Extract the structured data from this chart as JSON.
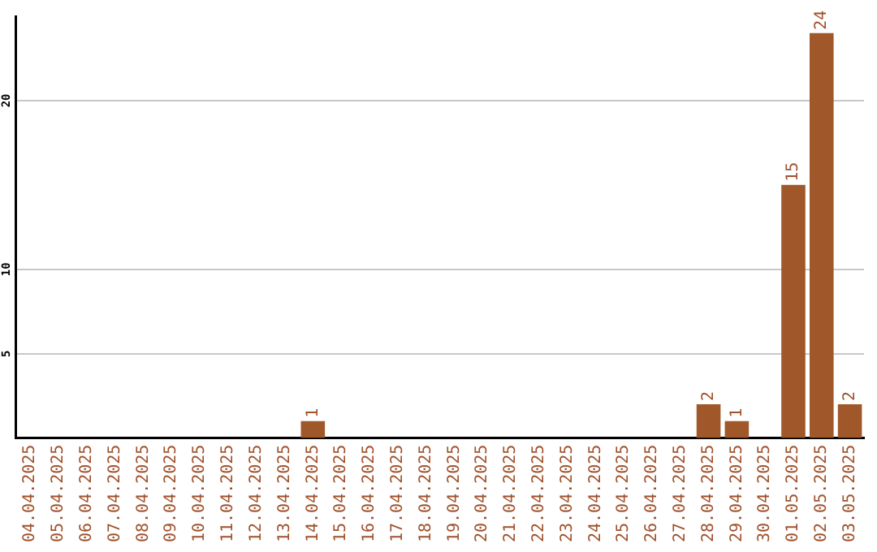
{
  "chart_data": {
    "type": "bar",
    "categories": [
      "04.04.2025",
      "05.04.2025",
      "06.04.2025",
      "07.04.2025",
      "08.04.2025",
      "09.04.2025",
      "10.04.2025",
      "11.04.2025",
      "12.04.2025",
      "13.04.2025",
      "14.04.2025",
      "15.04.2025",
      "16.04.2025",
      "17.04.2025",
      "18.04.2025",
      "19.04.2025",
      "20.04.2025",
      "21.04.2025",
      "22.04.2025",
      "23.04.2025",
      "24.04.2025",
      "25.04.2025",
      "26.04.2025",
      "27.04.2025",
      "28.04.2025",
      "29.04.2025",
      "30.04.2025",
      "01.05.2025",
      "02.05.2025",
      "03.05.2025"
    ],
    "values": [
      0,
      0,
      0,
      0,
      0,
      0,
      0,
      0,
      0,
      0,
      1,
      0,
      0,
      0,
      0,
      0,
      0,
      0,
      0,
      0,
      0,
      0,
      0,
      0,
      2,
      1,
      0,
      15,
      24,
      2
    ],
    "value_labels": [
      null,
      null,
      null,
      null,
      null,
      null,
      null,
      null,
      null,
      null,
      "1",
      null,
      null,
      null,
      null,
      null,
      null,
      null,
      null,
      null,
      null,
      null,
      null,
      null,
      "2",
      "1",
      null,
      "15",
      "24",
      "2"
    ],
    "color": "#a0572a",
    "ylim": [
      0,
      25
    ],
    "yticks": [
      5,
      10,
      20
    ],
    "grid": "y",
    "legend": false
  }
}
